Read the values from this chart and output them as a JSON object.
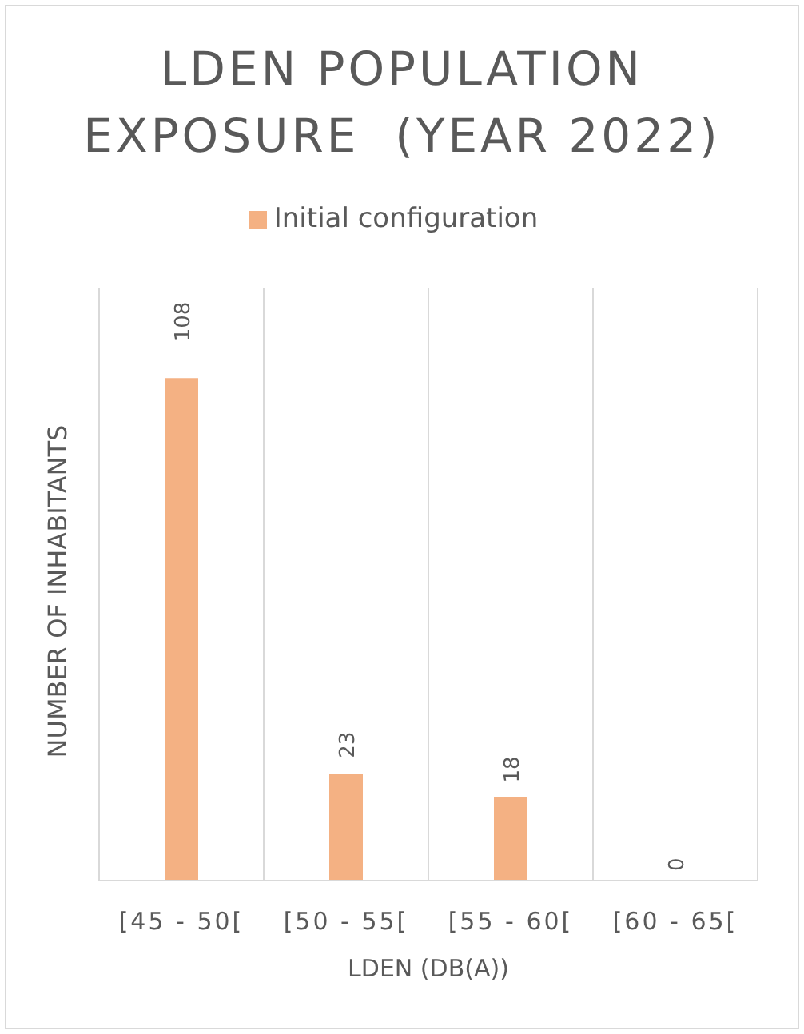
{
  "chart_data": {
    "type": "bar",
    "title": "LDEN POPULATION EXPOSURE  (YEAR 2022)",
    "xlabel": "LDEN (DB(A))",
    "ylabel": "NUMBER OF INHABITANTS",
    "categories": [
      "[45 - 50[",
      "[50 - 55[",
      "[55 - 60[",
      "[60 - 65["
    ],
    "series": [
      {
        "name": "Initial configuration",
        "color": "#f4b183",
        "values": [
          108,
          23,
          18,
          0
        ]
      }
    ],
    "data_labels": true,
    "grid": "x",
    "legend": "top"
  }
}
